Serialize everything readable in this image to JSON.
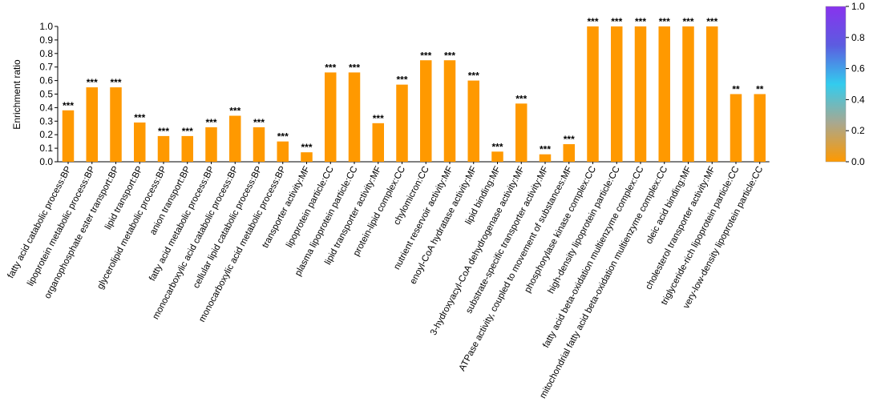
{
  "chart_data": {
    "type": "bar",
    "title": "",
    "xlabel": "",
    "ylabel": "Enrichment ratio",
    "ylim": [
      0,
      1.0
    ],
    "yticks": [
      "0.0",
      "0.1",
      "0.2",
      "0.3",
      "0.4",
      "0.5",
      "0.6",
      "0.7",
      "0.8",
      "0.9",
      "1.0"
    ],
    "grid": false,
    "bar_color": "#FF9900",
    "categories": [
      "fatty acid catabolic process:BP",
      "lipoprotein metabolic process:BP",
      "organophosphate ester transport:BP",
      "lipid transport:BP",
      "glycerolipid metabolic process:BP",
      "anion transport:BP",
      "fatty acid metabolic process:BP",
      "monocarboxylic acid catabolic process:BP",
      "cellular lipid catabolic process:BP",
      "monocarboxylic acid metabolic process:BP",
      "transporter activity:MF",
      "lipoprotein particle:CC",
      "plasma lipoprotein particle:CC",
      "lipid transporter activity:MF",
      "protein-lipid complex:CC",
      "chylomicron:CC",
      "nutrient reservoir activity:MF",
      "enoyl-CoA hydratase activity:MF",
      "lipid binding:MF",
      "3-hydroxyacyl-CoA dehydrogenase activity:MF",
      "substrate-specific transporter activity:MF",
      "ATPase activity, coupled to movement of substances:MF",
      "phosphorylase kinase complex:CC",
      "high-density lipoprotein particle:CC",
      "fatty acid beta-oxidation multienzyme complex:CC",
      "mitochondrial fatty acid beta-oxidation multienzyme complex:CC",
      "oleic acid binding:MF",
      "cholesterol transporter activity:MF",
      "triglyceride-rich lipoprotein particle:CC",
      "very-low-density lipoprotein particle:CC"
    ],
    "values": [
      0.38,
      0.55,
      0.55,
      0.29,
      0.19,
      0.19,
      0.255,
      0.34,
      0.255,
      0.15,
      0.07,
      0.66,
      0.66,
      0.285,
      0.57,
      0.75,
      0.75,
      0.6,
      0.075,
      0.43,
      0.055,
      0.13,
      1.0,
      1.0,
      1.0,
      1.0,
      1.0,
      1.0,
      0.5,
      0.5
    ],
    "significance": [
      "***",
      "***",
      "***",
      "***",
      "***",
      "***",
      "***",
      "***",
      "***",
      "***",
      "***",
      "***",
      "***",
      "***",
      "***",
      "***",
      "***",
      "***",
      "***",
      "***",
      "***",
      "***",
      "***",
      "***",
      "***",
      "***",
      "***",
      "***",
      "**",
      "**"
    ],
    "colorbar": {
      "ticks": [
        "0.0",
        "0.2",
        "0.4",
        "0.6",
        "0.8",
        "1.0"
      ],
      "range": [
        0,
        1.0
      ],
      "colors": [
        "#FF9900",
        "#A8A890",
        "#33CCEE",
        "#5C5CE0",
        "#8833EE"
      ]
    }
  }
}
